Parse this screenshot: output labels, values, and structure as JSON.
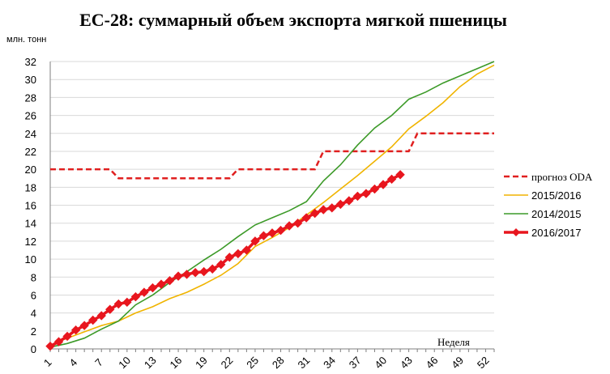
{
  "chart_data": {
    "type": "line",
    "title": "ЕС-28: суммарный объем экспорта мягкой пшеницы",
    "ylabel": "млн. тонн",
    "xlabel": "Неделя",
    "ylim": [
      0,
      32
    ],
    "xlim": [
      1,
      53
    ],
    "yticks": [
      0,
      2,
      4,
      6,
      8,
      10,
      12,
      14,
      16,
      18,
      20,
      22,
      24,
      26,
      28,
      30,
      32
    ],
    "xticks": [
      1,
      4,
      7,
      10,
      13,
      16,
      19,
      22,
      25,
      28,
      31,
      34,
      37,
      40,
      43,
      46,
      49,
      52
    ],
    "grid": "horizontal",
    "legend_position": "right",
    "series": [
      {
        "name": "прогноз ODA",
        "color": "#e02020",
        "style": "dashed",
        "x": [
          1,
          8,
          9,
          22,
          23,
          32,
          33,
          43,
          44,
          53
        ],
        "y": [
          20,
          20,
          19,
          19,
          20,
          20,
          22,
          22,
          24,
          24
        ]
      },
      {
        "name": "2015/2016",
        "color": "#f0b400",
        "style": "solid",
        "x": [
          1,
          3,
          5,
          7,
          9,
          11,
          13,
          15,
          17,
          19,
          21,
          23,
          25,
          27,
          29,
          31,
          33,
          35,
          37,
          39,
          41,
          43,
          45,
          47,
          49,
          51,
          53
        ],
        "y": [
          0.4,
          1.2,
          1.9,
          2.6,
          3.1,
          4.0,
          4.7,
          5.6,
          6.3,
          7.2,
          8.2,
          9.5,
          11.4,
          12.4,
          13.5,
          14.9,
          16.3,
          17.8,
          19.3,
          20.9,
          22.5,
          24.5,
          25.9,
          27.4,
          29.2,
          30.6,
          31.6
        ]
      },
      {
        "name": "2014/2015",
        "color": "#3c9a28",
        "style": "solid",
        "x": [
          1,
          3,
          5,
          7,
          9,
          11,
          13,
          15,
          17,
          19,
          21,
          23,
          25,
          27,
          29,
          31,
          33,
          35,
          37,
          39,
          41,
          43,
          45,
          47,
          49,
          51,
          53
        ],
        "y": [
          0.2,
          0.6,
          1.2,
          2.2,
          3.1,
          4.9,
          6.0,
          7.4,
          8.6,
          9.9,
          11.1,
          12.5,
          13.8,
          14.6,
          15.4,
          16.4,
          18.7,
          20.5,
          22.7,
          24.6,
          26.0,
          27.8,
          28.6,
          29.6,
          30.4,
          31.2,
          32.0
        ]
      },
      {
        "name": "2016/2017",
        "color": "#e8161e",
        "style": "markers",
        "x": [
          1,
          2,
          3,
          4,
          5,
          6,
          7,
          8,
          9,
          10,
          11,
          12,
          13,
          14,
          15,
          16,
          17,
          18,
          19,
          20,
          21,
          22,
          23,
          24,
          25,
          26,
          27,
          28,
          29,
          30,
          31,
          32,
          33,
          34,
          35,
          36,
          37,
          38,
          39,
          40,
          41,
          42
        ],
        "y": [
          0.3,
          0.8,
          1.4,
          2.1,
          2.6,
          3.2,
          3.7,
          4.4,
          5.0,
          5.2,
          5.8,
          6.3,
          6.8,
          7.2,
          7.6,
          8.1,
          8.3,
          8.5,
          8.6,
          8.9,
          9.4,
          10.2,
          10.6,
          11.0,
          12.0,
          12.6,
          12.9,
          13.2,
          13.7,
          14.0,
          14.6,
          15.1,
          15.5,
          15.7,
          16.1,
          16.5,
          17.0,
          17.3,
          17.8,
          18.3,
          18.9,
          19.4
        ]
      }
    ]
  }
}
